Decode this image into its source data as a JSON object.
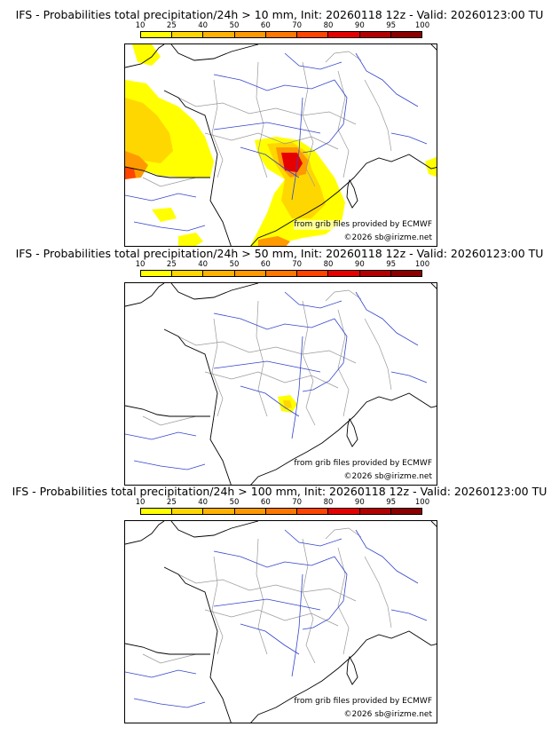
{
  "panels": [
    {
      "title": "IFS - Probabilities total precipitation/24h > 10 mm, Init: 20260118 12z - Valid: 20260123:00 TU",
      "source_text": "from grib files provided by ECMWF",
      "copyright_text": "©2026 sb@irizme.net",
      "layer": "p10"
    },
    {
      "title": "IFS - Probabilities total precipitation/24h > 50 mm, Init: 20260118 12z - Valid: 20260123:00 TU",
      "source_text": "from grib files provided by ECMWF",
      "copyright_text": "©2026 sb@irizme.net",
      "layer": "p50"
    },
    {
      "title": "IFS - Probabilities total precipitation/24h > 100 mm, Init: 20260118 12z - Valid: 20260123:00 TU",
      "source_text": "from grib files provided by ECMWF",
      "copyright_text": "©2026 sb@irizme.net",
      "layer": "p100"
    }
  ],
  "scale": {
    "labels": [
      "10",
      "25",
      "40",
      "50",
      "60",
      "70",
      "80",
      "90",
      "95",
      "100"
    ],
    "colors": [
      "#ffff00",
      "#ffd700",
      "#ffb300",
      "#ff9900",
      "#ff7700",
      "#ff4400",
      "#e60000",
      "#b40000",
      "#8c0000",
      "#5a0000"
    ]
  },
  "colors": {
    "coast": "#000000",
    "rivers": "#3344cc",
    "borders": "#999999"
  }
}
